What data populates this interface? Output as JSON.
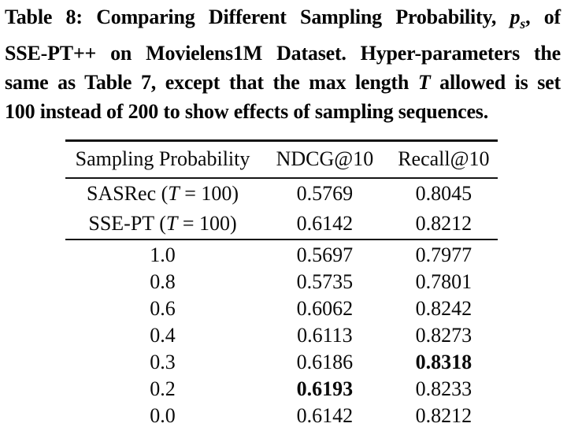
{
  "caption": {
    "lines": [
      {
        "pre": "Table 8: Comparing Different Sampling Probability, ",
        "var": "p",
        "sub": "s",
        "post": ", of"
      },
      {
        "pre": "SSE-PT++ on Movielens1M Dataset. Hyper-parameters the"
      },
      {
        "pre": "same as Table 7, except that the max length ",
        "var": "T",
        "post": " allowed is set"
      },
      {
        "pre": "100 instead of 200 to show effects of sampling sequences."
      }
    ]
  },
  "table": {
    "columns": [
      "Sampling Probability",
      "NDCG@10",
      "Recall@10"
    ],
    "baseline_rows": [
      {
        "label_pre": "SASRec (",
        "label_var": "T",
        "label_post": " = 100)",
        "ndcg": "0.5769",
        "recall": "0.8045",
        "ndcg_bold": false,
        "recall_bold": false
      },
      {
        "label_pre": "SSE-PT (",
        "label_var": "T",
        "label_post": " = 100)",
        "ndcg": "0.6142",
        "recall": "0.8212",
        "ndcg_bold": false,
        "recall_bold": false
      }
    ],
    "sampling_rows": [
      {
        "label": "1.0",
        "ndcg": "0.5697",
        "recall": "0.7977",
        "ndcg_bold": false,
        "recall_bold": false
      },
      {
        "label": "0.8",
        "ndcg": "0.5735",
        "recall": "0.7801",
        "ndcg_bold": false,
        "recall_bold": false
      },
      {
        "label": "0.6",
        "ndcg": "0.6062",
        "recall": "0.8242",
        "ndcg_bold": false,
        "recall_bold": false
      },
      {
        "label": "0.4",
        "ndcg": "0.6113",
        "recall": "0.8273",
        "ndcg_bold": false,
        "recall_bold": false
      },
      {
        "label": "0.3",
        "ndcg": "0.6186",
        "recall": "0.8318",
        "ndcg_bold": false,
        "recall_bold": true
      },
      {
        "label": "0.2",
        "ndcg": "0.6193",
        "recall": "0.8233",
        "ndcg_bold": true,
        "recall_bold": false
      },
      {
        "label": "0.0",
        "ndcg": "0.6142",
        "recall": "0.8212",
        "ndcg_bold": false,
        "recall_bold": false
      }
    ]
  },
  "colors": {
    "background": "#ffffff",
    "text": "#0a0a0a",
    "rule": "#141414"
  }
}
